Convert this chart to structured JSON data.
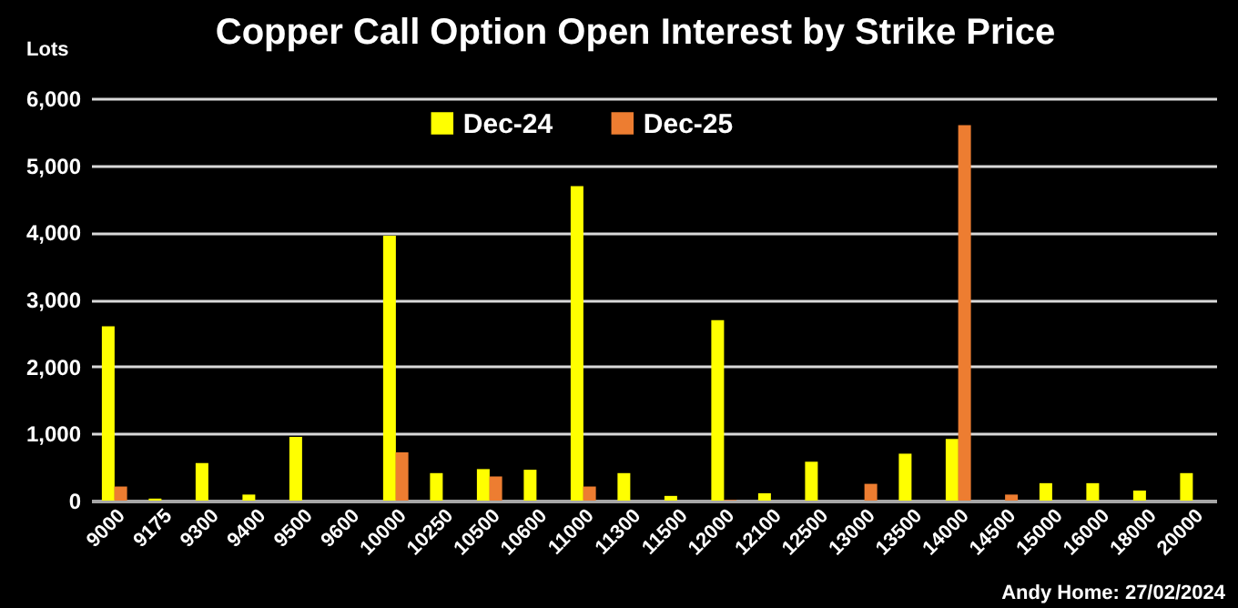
{
  "chart_data": {
    "type": "bar",
    "title": "Copper Call Option Open Interest by Strike Price",
    "ylabel": "Lots",
    "categories": [
      "9000",
      "9175",
      "9300",
      "9400",
      "9500",
      "9600",
      "10000",
      "10250",
      "10500",
      "10600",
      "11000",
      "11300",
      "11500",
      "12000",
      "12100",
      "12500",
      "13000",
      "13500",
      "14000",
      "14500",
      "15000",
      "16000",
      "18000",
      "20000"
    ],
    "series": [
      {
        "name": "Dec-24",
        "color": "#ffff00",
        "values": [
          2600,
          30,
          560,
          90,
          950,
          0,
          3950,
          410,
          470,
          460,
          4690,
          410,
          70,
          2690,
          110,
          580,
          0,
          700,
          920,
          0,
          260,
          260,
          150,
          410
        ]
      },
      {
        "name": "Dec-25",
        "color": "#ed7d31",
        "values": [
          210,
          0,
          0,
          0,
          0,
          0,
          720,
          0,
          360,
          0,
          210,
          0,
          0,
          10,
          0,
          0,
          250,
          0,
          5600,
          90,
          0,
          0,
          0,
          0
        ]
      }
    ],
    "ylim": [
      0,
      6000
    ],
    "yticks": [
      0,
      {
        "value": 1000,
        "label": "1,000"
      },
      {
        "value": 2000,
        "label": "2,000"
      },
      {
        "value": 3000,
        "label": "3,000"
      },
      {
        "value": 4000,
        "label": "4,000"
      },
      {
        "value": 5000,
        "label": "5,000"
      },
      {
        "value": 6000,
        "label": "6,000"
      }
    ],
    "grid": "y",
    "legend": "top",
    "annotations": [
      "Andy Home: 27/02/2024"
    ]
  }
}
